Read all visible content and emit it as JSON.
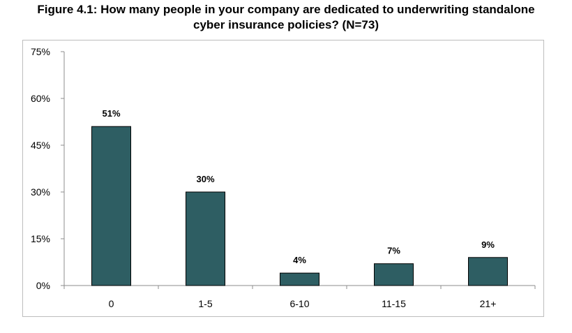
{
  "chart_data": {
    "type": "bar",
    "title": "Figure 4.1: How many people in your company are dedicated to underwriting standalone cyber insurance policies? (N=73)",
    "title_lines": [
      "Figure 4.1: How many people in your company are dedicated to underwriting standalone",
      "cyber insurance policies? (N=73)"
    ],
    "categories": [
      "0",
      "1-5",
      "6-10",
      "11-15",
      "21+"
    ],
    "values": [
      51,
      30,
      4,
      7,
      9
    ],
    "data_labels": [
      "51%",
      "30%",
      "4%",
      "7%",
      "9%"
    ],
    "y_ticks": [
      0,
      15,
      30,
      45,
      60,
      75
    ],
    "y_tick_labels": [
      "0%",
      "15%",
      "30%",
      "45%",
      "60%",
      "75%"
    ],
    "ylim": [
      0,
      75
    ],
    "xlabel": "",
    "ylabel": "",
    "grid": false,
    "legend": "none",
    "colors": {
      "bar_fill": "#2e5e63",
      "bar_stroke": "#000000",
      "axis": "#8c8c8c",
      "frame": "#bdbdbd"
    }
  }
}
